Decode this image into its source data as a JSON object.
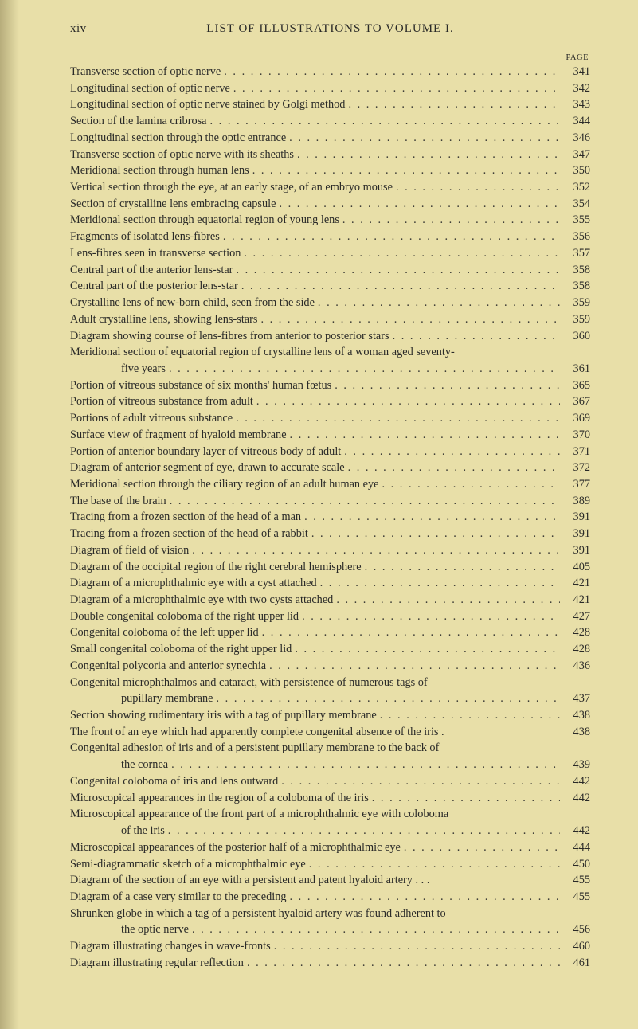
{
  "header": {
    "page_roman": "xiv",
    "title": "LIST OF ILLUSTRATIONS TO VOLUME I.",
    "page_label": "PAGE"
  },
  "entries": [
    {
      "text": "Transverse section of optic nerve",
      "page": "341"
    },
    {
      "text": "Longitudinal section of optic nerve",
      "page": "342"
    },
    {
      "text": "Longitudinal section of optic nerve stained by Golgi method",
      "page": "343"
    },
    {
      "text": "Section of the lamina cribrosa",
      "page": "344"
    },
    {
      "text": "Longitudinal section through the optic entrance",
      "page": "346"
    },
    {
      "text": "Transverse section of optic nerve with its sheaths",
      "page": "347"
    },
    {
      "text": "Meridional section through human lens",
      "page": "350"
    },
    {
      "text": "Vertical section through the eye, at an early stage, of an embryo mouse",
      "page": "352"
    },
    {
      "text": "Section of crystalline lens embracing capsule",
      "page": "354"
    },
    {
      "text": "Meridional section through equatorial region of young lens",
      "page": "355"
    },
    {
      "text": "Fragments of isolated lens-fibres",
      "page": "356"
    },
    {
      "text": "Lens-fibres seen in transverse section",
      "page": "357"
    },
    {
      "text": "Central part of the anterior lens-star",
      "page": "358"
    },
    {
      "text": "Central part of the posterior lens-star",
      "page": "358"
    },
    {
      "text": "Crystalline lens of new-born child, seen from the side",
      "page": "359"
    },
    {
      "text": "Adult crystalline lens, showing lens-stars",
      "page": "359"
    },
    {
      "text": "Diagram showing course of lens-fibres from anterior to posterior stars",
      "page": "360"
    },
    {
      "text": "Meridional section of equatorial region of crystalline lens of a woman aged seventy-",
      "wrap": true
    },
    {
      "text": "five years",
      "page": "361",
      "indent": true
    },
    {
      "text": "Portion of vitreous substance of six months' human fœtus",
      "page": "365"
    },
    {
      "text": "Portion of vitreous substance from adult",
      "page": "367"
    },
    {
      "text": "Portions of adult vitreous substance",
      "page": "369"
    },
    {
      "text": "Surface view of fragment of hyaloid membrane",
      "page": "370"
    },
    {
      "text": "Portion of anterior boundary layer of vitreous body of adult",
      "page": "371"
    },
    {
      "text": "Diagram of anterior segment of eye, drawn to accurate scale",
      "page": "372"
    },
    {
      "text": "Meridional section through the ciliary region of an adult human eye",
      "page": "377"
    },
    {
      "text": "The base of the brain",
      "page": "389"
    },
    {
      "text": "Tracing from a frozen section of the head of a man",
      "page": "391"
    },
    {
      "text": "Tracing from a frozen section of the head of a rabbit",
      "page": "391"
    },
    {
      "text": "Diagram of field of vision",
      "page": "391"
    },
    {
      "text": "Diagram of the occipital region of the right cerebral hemisphere",
      "page": "405"
    },
    {
      "text": "Diagram of a microphthalmic eye with a cyst attached",
      "page": "421"
    },
    {
      "text": "Diagram of a microphthalmic eye with two cysts attached",
      "page": "421"
    },
    {
      "text": "Double congenital coloboma of the right upper lid",
      "page": "427"
    },
    {
      "text": "Congenital coloboma of the left upper lid",
      "page": "428"
    },
    {
      "text": "Small congenital coloboma of the right upper lid",
      "page": "428"
    },
    {
      "text": "Congenital polycoria and anterior synechia",
      "page": "436"
    },
    {
      "text": "Congenital microphthalmos and cataract, with persistence of numerous tags of",
      "wrap": true
    },
    {
      "text": "pupillary membrane",
      "page": "437",
      "indent": true
    },
    {
      "text": "Section showing rudimentary iris with a tag of pupillary membrane",
      "page": "438"
    },
    {
      "text": "The front of an eye which had apparently complete congenital absence of the iris .",
      "page": "438",
      "noleader": true
    },
    {
      "text": "Congenital adhesion of iris and of a persistent pupillary membrane to the back of",
      "wrap": true
    },
    {
      "text": "the cornea",
      "page": "439",
      "indent": true
    },
    {
      "text": "Congenital coloboma of iris and lens outward",
      "page": "442"
    },
    {
      "text": "Microscopical appearances in the region of a coloboma of the iris",
      "page": "442"
    },
    {
      "text": "Microscopical appearance of the front part of a microphthalmic eye with coloboma",
      "wrap": true
    },
    {
      "text": "of the iris",
      "page": "442",
      "indent": true
    },
    {
      "text": "Microscopical appearances of the posterior half of a microphthalmic eye",
      "page": "444"
    },
    {
      "text": "Semi-diagrammatic sketch of a microphthalmic eye",
      "page": "450"
    },
    {
      "text": "Diagram of the section of an eye with a persistent and patent hyaloid artery  .  .  .",
      "page": "455",
      "noleader": true
    },
    {
      "text": "Diagram of a case very similar to the preceding",
      "page": "455"
    },
    {
      "text": "Shrunken globe in which a tag of a persistent hyaloid artery was found adherent to",
      "wrap": true
    },
    {
      "text": "the optic nerve",
      "page": "456",
      "indent": true
    },
    {
      "text": "Diagram illustrating changes in wave-fronts",
      "page": "460"
    },
    {
      "text": "Diagram illustrating regular reflection",
      "page": "461"
    }
  ],
  "colors": {
    "background": "#e8dfa8",
    "text": "#2a2a28"
  }
}
